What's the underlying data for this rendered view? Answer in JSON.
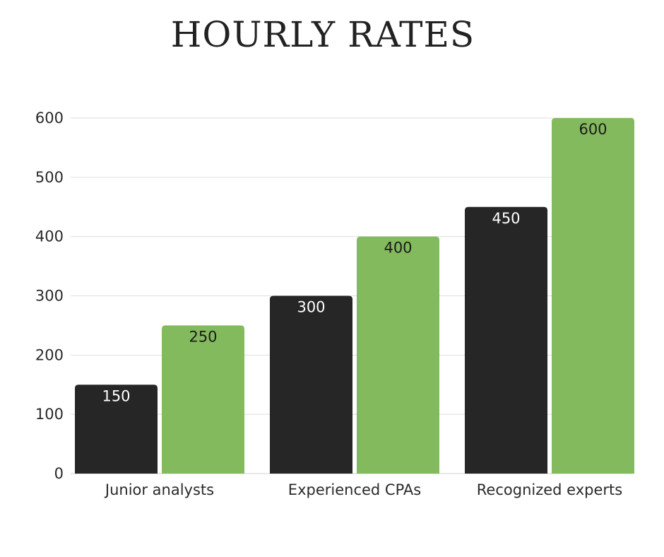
{
  "chart_data": {
    "type": "bar",
    "title": "HOURLY RATES",
    "categories": [
      "Junior analysts",
      "Experienced CPAs",
      "Recognized experts"
    ],
    "series": [
      {
        "values": [
          150,
          300,
          450
        ],
        "color": "#262626",
        "label_color": "#ffffff"
      },
      {
        "values": [
          250,
          400,
          600
        ],
        "color": "#84ba5e",
        "label_color": "#1a1a1a"
      }
    ],
    "ylim": [
      0,
      600
    ],
    "yticks": [
      0,
      100,
      200,
      300,
      400,
      500,
      600
    ],
    "grid": true,
    "legend": "none"
  }
}
